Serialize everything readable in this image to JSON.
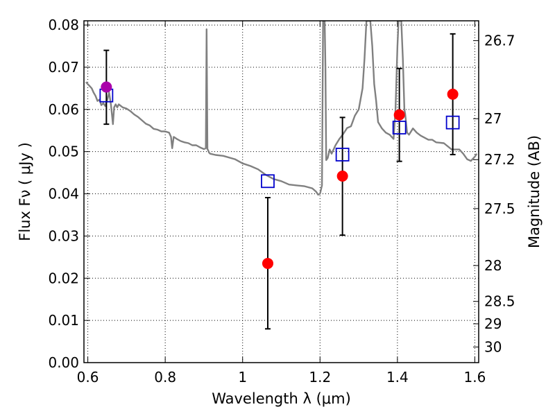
{
  "chart_data": {
    "type": "scatter",
    "xlabel": "Wavelength  λ (μm)",
    "ylabel": "Flux  Fν  ( μJy )",
    "ylabel_right": "Magnitude (AB)",
    "xlim": [
      0.59,
      1.61
    ],
    "ylim": [
      0.0,
      0.081
    ],
    "x_ticks": [
      0.6,
      0.8,
      1.0,
      1.2,
      1.4,
      1.6
    ],
    "x_tick_labels": [
      "0.6",
      "0.8",
      "1",
      "1.2",
      "1.4",
      "1.6"
    ],
    "y_ticks": [
      0.0,
      0.01,
      0.02,
      0.03,
      0.04,
      0.05,
      0.06,
      0.07,
      0.08
    ],
    "y_tick_labels": [
      "0.00",
      "0.01",
      "0.02",
      "0.03",
      "0.04",
      "0.05",
      "0.06",
      "0.07",
      "0.08"
    ],
    "right_ticks": [
      {
        "label": "26.7",
        "flux": 0.0763
      },
      {
        "label": "27",
        "flux": 0.0578
      },
      {
        "label": "27.2",
        "flux": 0.0481
      },
      {
        "label": "27.5",
        "flux": 0.0365
      },
      {
        "label": "28",
        "flux": 0.023
      },
      {
        "label": "28.5",
        "flux": 0.0145
      },
      {
        "label": "29",
        "flux": 0.0092
      },
      {
        "label": "30",
        "flux": 0.0037
      }
    ],
    "grid": true,
    "colors": {
      "observed": "#ff0000",
      "observed_first": "#aa00aa",
      "model_band": "#0000cc",
      "spectrum": "#808080",
      "errorbar": "#000000"
    },
    "series": [
      {
        "kind": "spectrum",
        "x": [
          0.595,
          0.6,
          0.605,
          0.61,
          0.615,
          0.62,
          0.625,
          0.63,
          0.635,
          0.64,
          0.645,
          0.65,
          0.655,
          0.66,
          0.665,
          0.668,
          0.672,
          0.676,
          0.68,
          0.69,
          0.7,
          0.71,
          0.72,
          0.73,
          0.74,
          0.75,
          0.76,
          0.77,
          0.78,
          0.79,
          0.8,
          0.81,
          0.815,
          0.818,
          0.822,
          0.83,
          0.84,
          0.85,
          0.86,
          0.87,
          0.88,
          0.89,
          0.9,
          0.905,
          0.907,
          0.909,
          0.911,
          0.913,
          0.916,
          0.93,
          0.95,
          0.98,
          1.0,
          1.02,
          1.04,
          1.06,
          1.08,
          1.1,
          1.12,
          1.14,
          1.16,
          1.18,
          1.19,
          1.195,
          1.2,
          1.205,
          1.208,
          1.21,
          1.212,
          1.214,
          1.216,
          1.22,
          1.225,
          1.23,
          1.24,
          1.25,
          1.26,
          1.27,
          1.28,
          1.29,
          1.3,
          1.31,
          1.315,
          1.32,
          1.325,
          1.33,
          1.335,
          1.34,
          1.345,
          1.35,
          1.36,
          1.37,
          1.38,
          1.39,
          1.395,
          1.4,
          1.403,
          1.406,
          1.41,
          1.414,
          1.418,
          1.42,
          1.425,
          1.43,
          1.44,
          1.45,
          1.46,
          1.47,
          1.48,
          1.49,
          1.5,
          1.52,
          1.54,
          1.56,
          1.57,
          1.58,
          1.59,
          1.6,
          1.605
        ],
        "y": [
          0.0665,
          0.066,
          0.0655,
          0.065,
          0.064,
          0.0632,
          0.062,
          0.0623,
          0.061,
          0.0615,
          0.0608,
          0.0622,
          0.064,
          0.061,
          0.0565,
          0.0605,
          0.0612,
          0.0605,
          0.0612,
          0.0605,
          0.0602,
          0.0596,
          0.0588,
          0.0582,
          0.0574,
          0.0566,
          0.0562,
          0.0554,
          0.0552,
          0.0548,
          0.0548,
          0.0545,
          0.0535,
          0.0508,
          0.0535,
          0.053,
          0.0525,
          0.0522,
          0.052,
          0.0515,
          0.0515,
          0.051,
          0.0506,
          0.0508,
          0.079,
          0.0506,
          0.0503,
          0.0498,
          0.0495,
          0.0492,
          0.049,
          0.0482,
          0.0472,
          0.0466,
          0.0458,
          0.0445,
          0.0435,
          0.043,
          0.0422,
          0.042,
          0.0418,
          0.0413,
          0.0405,
          0.0398,
          0.04,
          0.042,
          0.081,
          0.081,
          0.081,
          0.07,
          0.048,
          0.0485,
          0.0505,
          0.0495,
          0.0515,
          0.053,
          0.0542,
          0.0556,
          0.056,
          0.0585,
          0.06,
          0.065,
          0.072,
          0.081,
          0.081,
          0.081,
          0.075,
          0.066,
          0.062,
          0.057,
          0.0555,
          0.0545,
          0.054,
          0.053,
          0.06,
          0.075,
          0.081,
          0.081,
          0.081,
          0.072,
          0.06,
          0.059,
          0.0545,
          0.054,
          0.0555,
          0.0545,
          0.0538,
          0.0533,
          0.0528,
          0.0528,
          0.0522,
          0.052,
          0.0505,
          0.0505,
          0.0495,
          0.0482,
          0.0478,
          0.0488,
          0.0495
        ]
      },
      {
        "kind": "model_band",
        "marker": "open-square",
        "x": [
          0.648,
          1.065,
          1.258,
          1.405,
          1.543
        ],
        "y": [
          0.0633,
          0.043,
          0.0493,
          0.0557,
          0.0569
        ]
      },
      {
        "kind": "observed",
        "marker": "filled-circle",
        "x": [
          0.648,
          1.065,
          1.258,
          1.405,
          1.543
        ],
        "y": [
          0.0653,
          0.0235,
          0.0442,
          0.0587,
          0.0636
        ],
        "err_low": [
          0.0565,
          0.008,
          0.0302,
          0.0477,
          0.0493
        ],
        "err_high": [
          0.074,
          0.0391,
          0.0581,
          0.0697,
          0.0779
        ]
      }
    ]
  }
}
